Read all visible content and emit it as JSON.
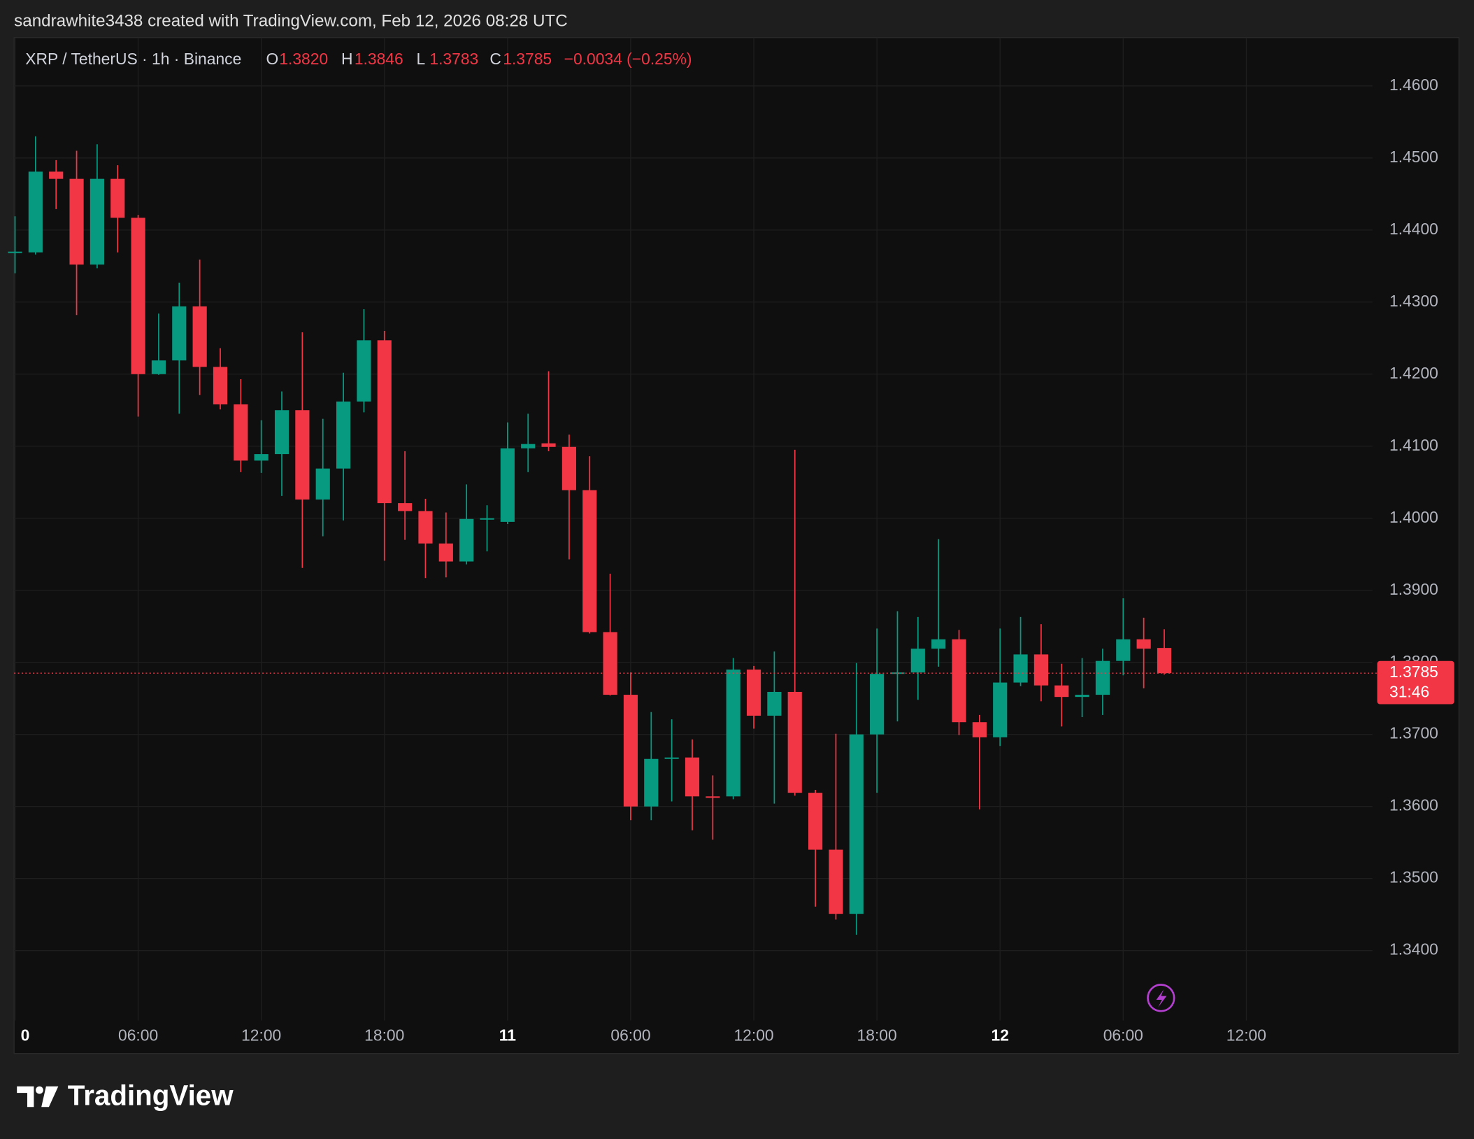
{
  "chart_data": {
    "type": "candlestick",
    "attribution": "sandrawhite3438 created with TradingView.com, Feb 12, 2026 08:28 UTC",
    "symbol": "XRP / TetherUS · 1h · Binance",
    "legend_ohlc": [
      {
        "label": "O",
        "value": "1.3820"
      },
      {
        "label": "H",
        "value": "1.3846"
      },
      {
        "label": "L",
        "value": "1.3783"
      },
      {
        "label": "C",
        "value": "1.3785"
      }
    ],
    "change": "−0.0034 (−0.25%)",
    "brand": "TradingView",
    "up_color": "#089981",
    "down_color": "#f23645",
    "grid": true,
    "ylim": [
      1.3303,
      1.4667
    ],
    "yticks": [
      {
        "value": 1.34,
        "label": "1.3400"
      },
      {
        "value": 1.35,
        "label": "1.3500"
      },
      {
        "value": 1.36,
        "label": "1.3600"
      },
      {
        "value": 1.37,
        "label": "1.3700"
      },
      {
        "value": 1.38,
        "label": "1.3800"
      },
      {
        "value": 1.39,
        "label": "1.3900"
      },
      {
        "value": 1.4,
        "label": "1.4000"
      },
      {
        "value": 1.41,
        "label": "1.4100"
      },
      {
        "value": 1.42,
        "label": "1.4200"
      },
      {
        "value": 1.43,
        "label": "1.4300"
      },
      {
        "value": 1.44,
        "label": "1.4400"
      },
      {
        "value": 1.45,
        "label": "1.4500"
      },
      {
        "value": 1.46,
        "label": "1.4600"
      }
    ],
    "last_price": {
      "value": 1.3785,
      "label": "1.3785"
    },
    "countdown": "31:46",
    "categories": [
      "0",
      null,
      null,
      null,
      null,
      null,
      "06:00",
      null,
      null,
      null,
      null,
      null,
      "12:00",
      null,
      null,
      null,
      null,
      null,
      "18:00",
      null,
      null,
      null,
      null,
      null,
      "11",
      null,
      null,
      null,
      null,
      null,
      "06:00",
      null,
      null,
      null,
      null,
      null,
      "12:00",
      null,
      null,
      null,
      null,
      null,
      "18:00",
      null,
      null,
      null,
      null,
      null,
      "12",
      null,
      null,
      null,
      null,
      null,
      "06:00",
      null,
      null,
      null,
      null,
      null,
      "12:00",
      null,
      null,
      null,
      null,
      null,
      null
    ],
    "open": [
      1.4368,
      1.4369,
      1.4481,
      1.4471,
      1.4352,
      1.4471,
      1.4417,
      1.42,
      1.4219,
      1.4294,
      1.421,
      1.4158,
      1.408,
      1.4089,
      1.415,
      1.4026,
      1.4069,
      1.4162,
      1.4247,
      1.4021,
      1.401,
      1.3965,
      1.394,
      1.3999,
      1.3995,
      1.4097,
      1.4104,
      1.4099,
      1.4039,
      1.3842,
      1.3755,
      1.36,
      1.3666,
      1.3668,
      1.3614,
      1.3614,
      1.379,
      1.3726,
      1.3759,
      1.3619,
      1.354,
      1.3451,
      1.37,
      1.3784,
      1.3786,
      1.3819,
      1.3832,
      1.3717,
      1.3696,
      1.3772,
      1.3811,
      1.3768,
      1.3752,
      1.3755,
      1.3802,
      1.3832,
      1.382,
      null,
      null,
      null,
      null,
      null,
      null,
      null,
      null,
      null,
      null
    ],
    "high": [
      1.4419,
      1.453,
      1.4497,
      1.451,
      1.4519,
      1.449,
      1.4421,
      1.4284,
      1.4327,
      1.4359,
      1.4236,
      1.4193,
      1.4136,
      1.4176,
      1.4258,
      1.4138,
      1.4202,
      1.429,
      1.426,
      1.4093,
      1.4027,
      1.4008,
      1.4047,
      1.4018,
      1.4133,
      1.4145,
      1.4204,
      1.4116,
      1.4086,
      1.3923,
      1.3786,
      1.3731,
      1.3721,
      1.3693,
      1.3643,
      1.3806,
      1.3795,
      1.3815,
      1.4095,
      1.3623,
      1.3701,
      1.3799,
      1.3847,
      1.3871,
      1.3863,
      1.3971,
      1.3845,
      1.3727,
      1.3847,
      1.3863,
      1.3853,
      1.3798,
      1.3806,
      1.3819,
      1.3889,
      1.3862,
      1.3846,
      null,
      null,
      null,
      null,
      null,
      null,
      null,
      null,
      null,
      null
    ],
    "low": [
      1.434,
      1.4366,
      1.4429,
      1.4282,
      1.4347,
      1.4369,
      1.4141,
      1.4199,
      1.4145,
      1.4171,
      1.4151,
      1.4064,
      1.4063,
      1.4031,
      1.3931,
      1.3975,
      1.3997,
      1.4147,
      1.3941,
      1.397,
      1.3917,
      1.3918,
      1.3936,
      1.3954,
      1.3992,
      1.4064,
      1.4093,
      1.3943,
      1.384,
      1.3754,
      1.3581,
      1.3581,
      1.3607,
      1.3567,
      1.3554,
      1.361,
      1.3708,
      1.3604,
      1.3615,
      1.3461,
      1.3443,
      1.3422,
      1.3619,
      1.3718,
      1.3748,
      1.3794,
      1.3699,
      1.3596,
      1.3684,
      1.3767,
      1.3746,
      1.3711,
      1.3724,
      1.3727,
      1.3782,
      1.3764,
      1.3783,
      null,
      null,
      null,
      null,
      null,
      null,
      null,
      null,
      null,
      null
    ],
    "close": [
      1.437,
      1.4481,
      1.4471,
      1.4352,
      1.4471,
      1.4417,
      1.42,
      1.4219,
      1.4294,
      1.421,
      1.4158,
      1.408,
      1.4089,
      1.415,
      1.4026,
      1.4069,
      1.4162,
      1.4247,
      1.4021,
      1.401,
      1.3965,
      1.394,
      1.3999,
      1.4,
      1.4097,
      1.4103,
      1.4099,
      1.4039,
      1.3842,
      1.3755,
      1.36,
      1.3666,
      1.3668,
      1.3614,
      1.3613,
      1.379,
      1.3726,
      1.3759,
      1.3619,
      1.354,
      1.3451,
      1.37,
      1.3784,
      1.3786,
      1.3819,
      1.3832,
      1.3717,
      1.3696,
      1.3772,
      1.3811,
      1.3768,
      1.3752,
      1.3755,
      1.3802,
      1.3832,
      1.3819,
      1.3785,
      null,
      null,
      null,
      null,
      null,
      null,
      null,
      null,
      null,
      null
    ]
  }
}
